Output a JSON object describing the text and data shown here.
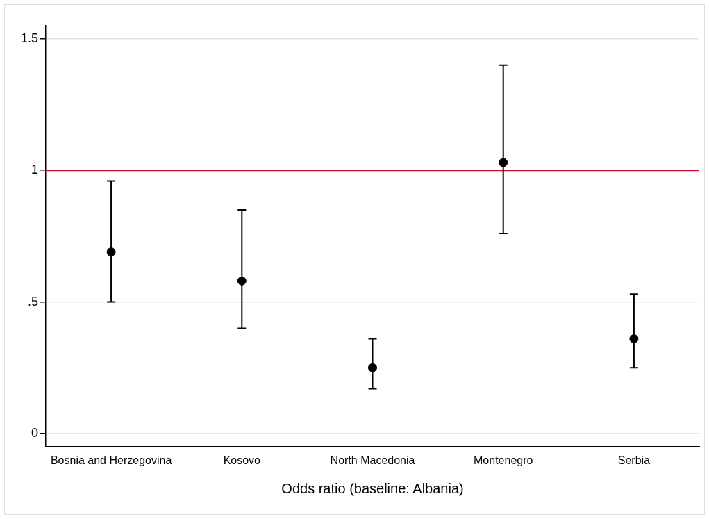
{
  "chart_data": {
    "type": "scatter",
    "xlabel": "Odds ratio (baseline: Albania)",
    "categories": [
      "Bosnia and Herzegovina",
      "Kosovo",
      "North Macedonia",
      "Montenegro",
      "Serbia"
    ],
    "values": [
      0.69,
      0.58,
      0.25,
      1.03,
      0.36
    ],
    "errors": [
      [
        0.5,
        0.96
      ],
      [
        0.4,
        0.85
      ],
      [
        0.17,
        0.36
      ],
      [
        0.76,
        1.4
      ],
      [
        0.25,
        0.53
      ]
    ],
    "color": "#000000",
    "marker": "circle",
    "ylim": [
      -0.05,
      1.55
    ],
    "yticks": [
      0,
      {
        "value": 0.5,
        "label": ".5"
      },
      1,
      1.5
    ],
    "grid": "y",
    "ref_lines": [
      {
        "axis": "y",
        "value": 1,
        "color": "#c8102e"
      }
    ],
    "legend": false
  }
}
